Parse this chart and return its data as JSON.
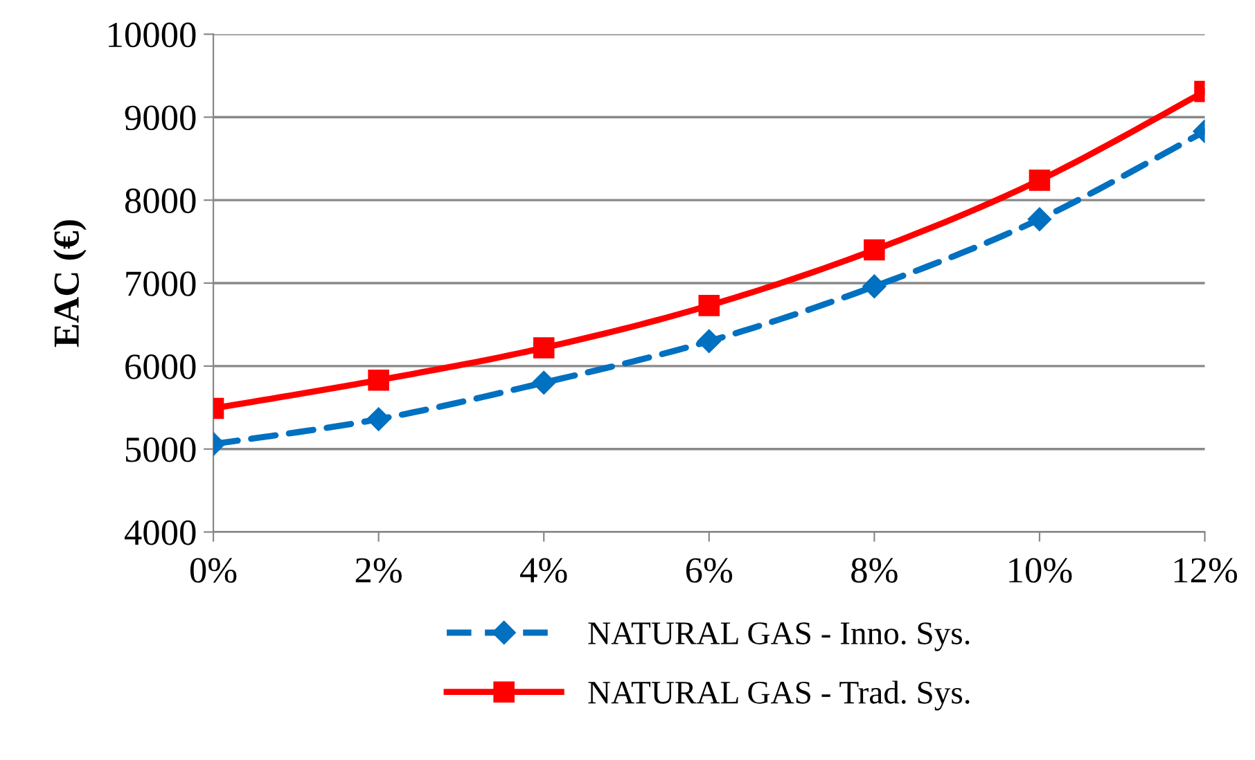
{
  "chart_data": {
    "type": "line",
    "ylabel": "EAC (€)",
    "x": [
      0,
      2,
      4,
      6,
      8,
      10,
      12
    ],
    "series": [
      {
        "name": "NATURAL GAS - Inno. Sys.",
        "color": "#0070c0",
        "values": [
          5060,
          5360,
          5800,
          6300,
          6960,
          7770,
          8830
        ],
        "marker": "diamond",
        "line_style": "dashed"
      },
      {
        "name": "NATURAL GAS - Trad. Sys.",
        "color": "#ff0000",
        "values": [
          5490,
          5830,
          6220,
          6730,
          7400,
          8240,
          9310
        ],
        "marker": "square",
        "line_style": "solid"
      }
    ],
    "xlim": [
      0,
      12
    ],
    "xticks": [
      {
        "value": 0,
        "label": "0%"
      },
      {
        "value": 2,
        "label": "2%"
      },
      {
        "value": 4,
        "label": "4%"
      },
      {
        "value": 6,
        "label": "6%"
      },
      {
        "value": 8,
        "label": "8%"
      },
      {
        "value": 10,
        "label": "10%"
      },
      {
        "value": 12,
        "label": "12%"
      }
    ],
    "ylim": [
      4000,
      10000
    ],
    "yticks": [
      4000,
      5000,
      6000,
      7000,
      8000,
      9000,
      10000
    ],
    "grid": "y",
    "legend": "bottom"
  }
}
